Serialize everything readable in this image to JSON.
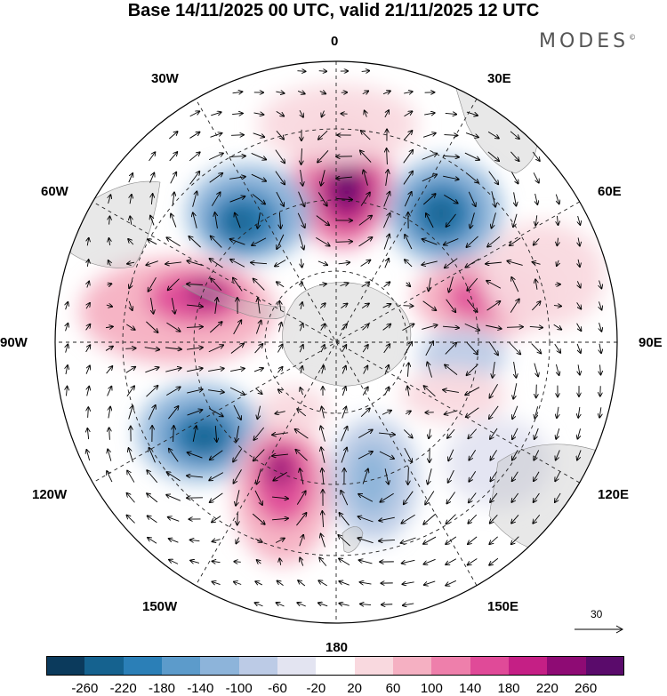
{
  "title": "Base 14/11/2025 00 UTC, valid 21/11/2025 12 UTC",
  "brand": "MODES",
  "brand_mark": "©",
  "longitude_labels": {
    "lon_0": "0",
    "lon_30e": "30E",
    "lon_60e": "60E",
    "lon_90e": "90E",
    "lon_120e": "120E",
    "lon_150e": "150E",
    "lon_180": "180",
    "lon_150w": "150W",
    "lon_120w": "120W",
    "lon_90w": "90W",
    "lon_60w": "60W",
    "lon_30w": "30W"
  },
  "colorbar": {
    "ticks": [
      "-260",
      "-220",
      "-180",
      "-140",
      "-100",
      "-60",
      "-20",
      "20",
      "60",
      "100",
      "140",
      "180",
      "220",
      "260"
    ],
    "colors": [
      "#0b3a5c",
      "#15628f",
      "#2b7fb7",
      "#5c9bcb",
      "#8db4da",
      "#bccbe6",
      "#e3e4f1",
      "#ffffff",
      "#f9d9df",
      "#f5b0c2",
      "#ee7fab",
      "#e04a98",
      "#c51f85",
      "#8e0b74",
      "#5a0b6b"
    ]
  },
  "vector_scale": {
    "value": "30"
  },
  "features": {
    "projection": "south-polar-stereographic",
    "variable_description": "anomaly field with wind vectors"
  }
}
